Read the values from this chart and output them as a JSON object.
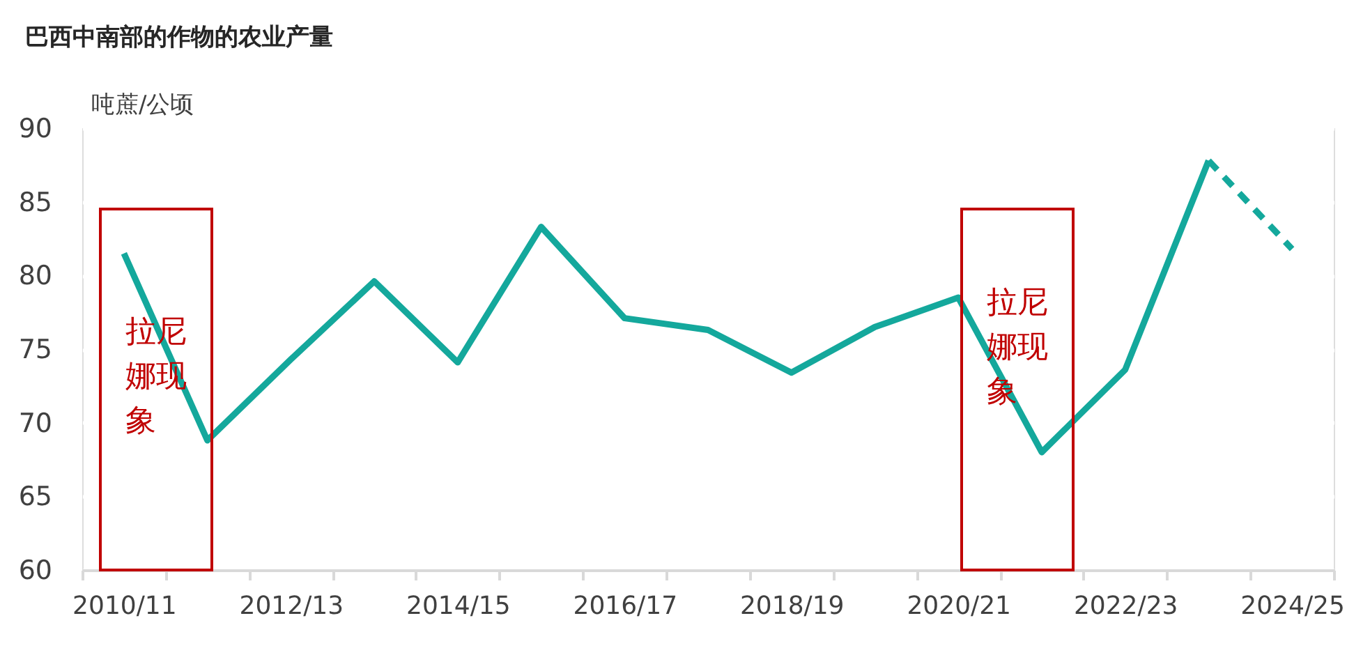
{
  "chart_data": {
    "type": "line",
    "title": "巴西中南部的作物的农业产量",
    "ylabel": "吨蔗/公顷",
    "categories": [
      "2010/11",
      null,
      "2012/13",
      null,
      "2014/15",
      null,
      "2016/17",
      null,
      "2018/19",
      null,
      "2020/21",
      null,
      "2022/23",
      null,
      "2024/25"
    ],
    "series": [
      {
        "color": "#14a89c",
        "values": [
          81.5,
          68.8,
          74.3,
          79.6,
          74.1,
          83.3,
          77.1,
          76.3,
          73.4,
          76.5,
          78.5,
          68.0,
          73.6,
          87.8,
          null
        ]
      },
      {
        "color": "#14a89c",
        "line_style": "dashed",
        "values": [
          null,
          null,
          null,
          null,
          null,
          null,
          null,
          null,
          null,
          null,
          null,
          null,
          null,
          87.8,
          81.8
        ]
      }
    ],
    "ylim": [
      60,
      90
    ],
    "yticks": [
      60,
      65,
      70,
      75,
      80,
      85,
      90
    ],
    "grid": "y",
    "annotations": [
      "拉尼娜现象",
      "拉尼娜现象"
    ]
  }
}
